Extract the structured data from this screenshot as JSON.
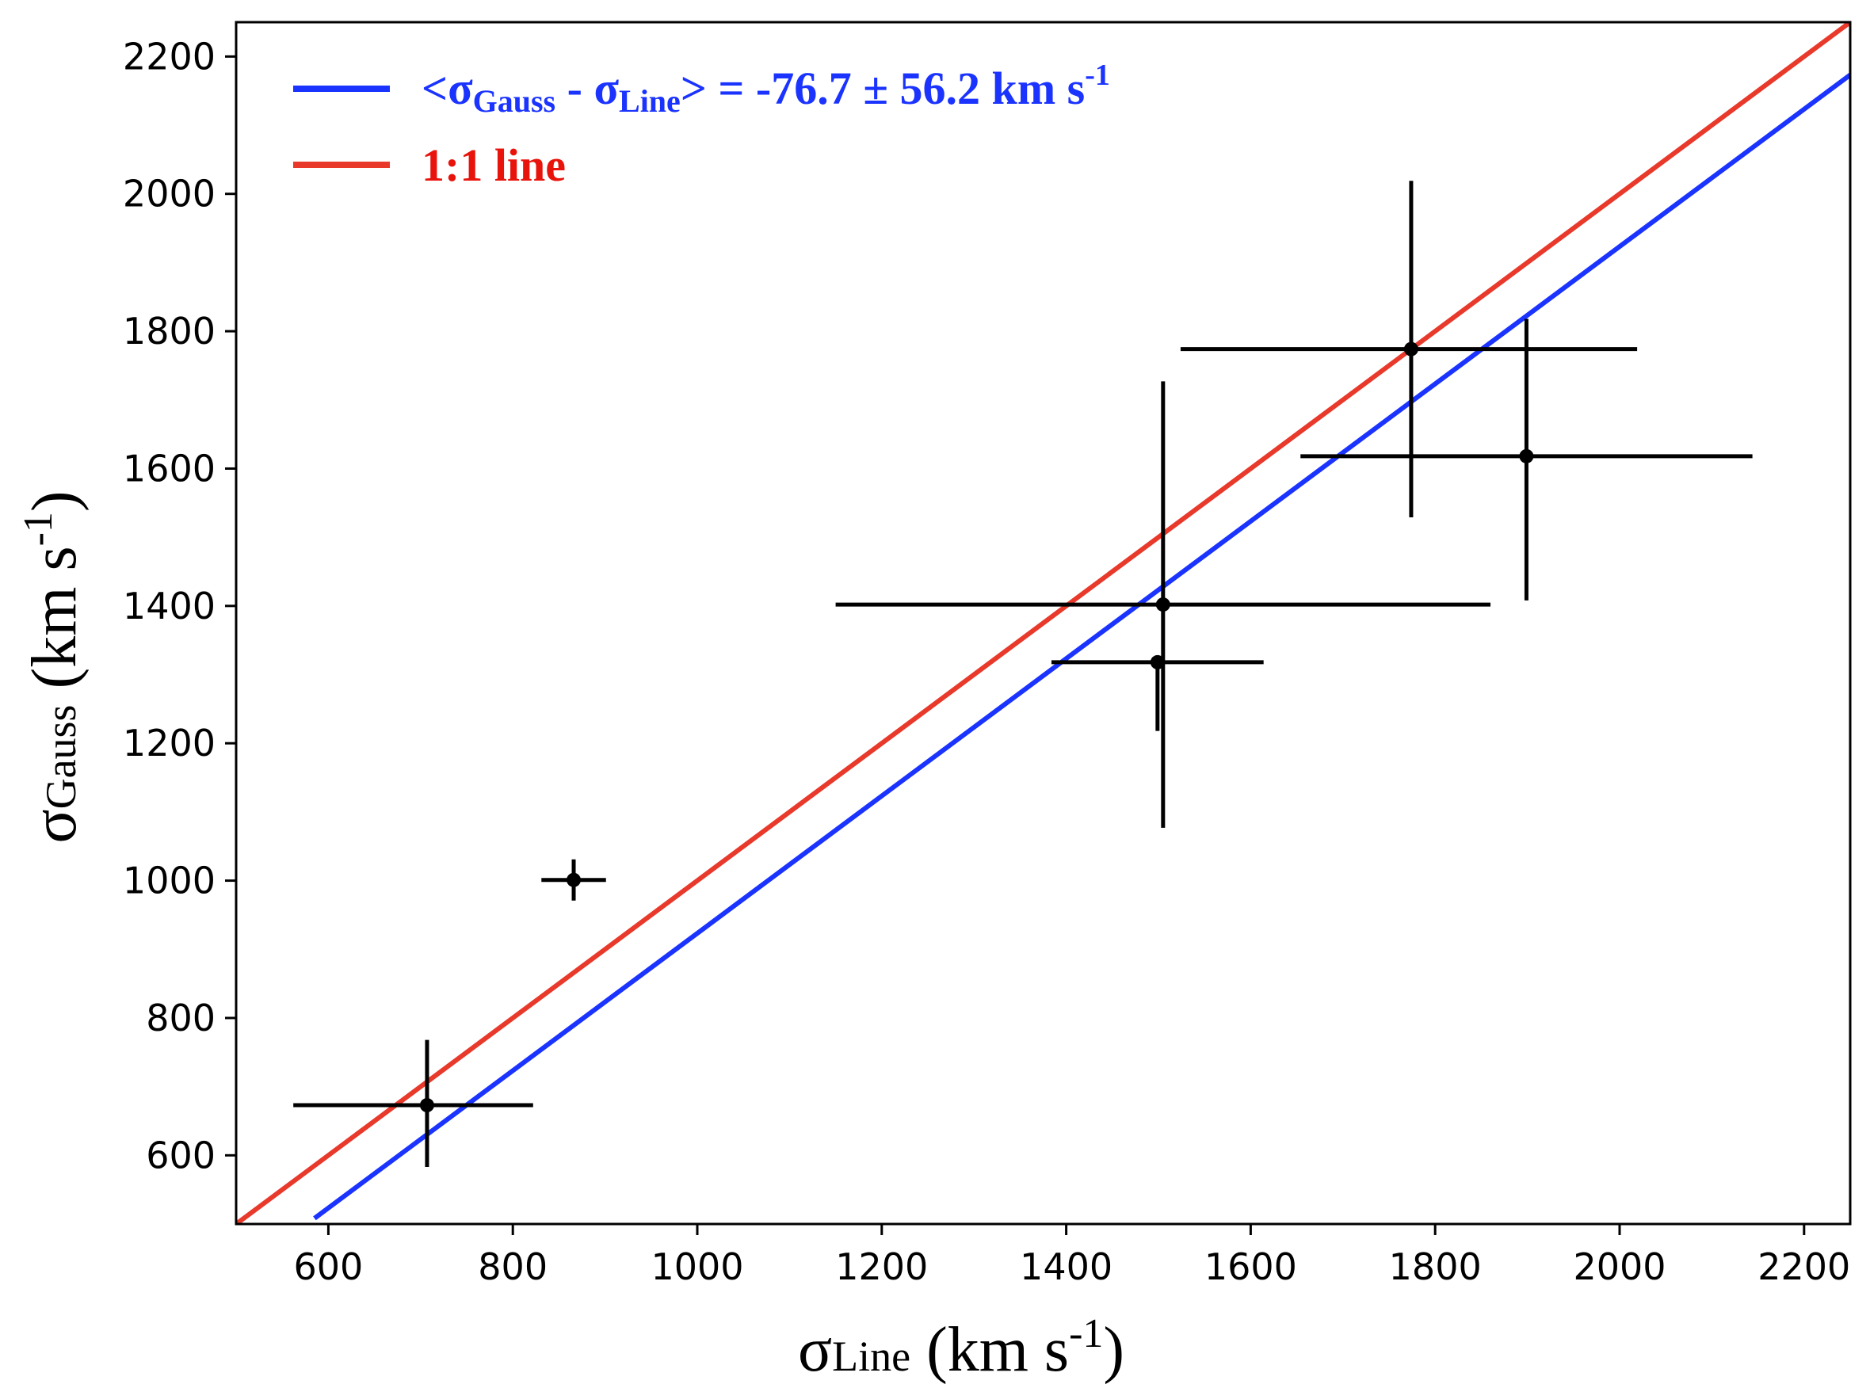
{
  "chart_data": {
    "type": "scatter",
    "title": "",
    "xlabel": {
      "symbol": "σ",
      "subscript": "Line",
      "unit": " (km s",
      "sup": "-1",
      "close": ")"
    },
    "ylabel": {
      "symbol": "σ",
      "subscript": "Gauss",
      "unit": " (km s",
      "sup": "-1",
      "close": ")"
    },
    "xlim": [
      500,
      2250
    ],
    "ylim": [
      500,
      2250
    ],
    "xticks": [
      600,
      800,
      1000,
      1200,
      1400,
      1600,
      1800,
      2000,
      2200
    ],
    "yticks": [
      600,
      800,
      1000,
      1200,
      1400,
      1600,
      1800,
      2000,
      2200
    ],
    "points": [
      {
        "x": 707,
        "y": 673,
        "xerr": [
          145,
          115
        ],
        "yerr": [
          90,
          95
        ]
      },
      {
        "x": 866,
        "y": 1001,
        "xerr": [
          35,
          35
        ],
        "yerr": [
          30,
          30
        ]
      },
      {
        "x": 1499,
        "y": 1318,
        "xerr": [
          115,
          115
        ],
        "yerr": [
          100,
          0
        ]
      },
      {
        "x": 1505,
        "y": 1402,
        "xerr": [
          355,
          355
        ],
        "yerr": [
          325,
          325
        ]
      },
      {
        "x": 1774,
        "y": 1774,
        "xerr": [
          250,
          245
        ],
        "yerr": [
          245,
          245
        ]
      },
      {
        "x": 1899,
        "y": 1618,
        "xerr": [
          245,
          245
        ],
        "yerr": [
          210,
          200
        ]
      }
    ],
    "lines": [
      {
        "name": "fit",
        "color": "#1a33ff",
        "x": [
          585,
          2250
        ],
        "y": [
          508.3,
          2173.3
        ]
      },
      {
        "name": "1:1",
        "color": "#e8392b",
        "x": [
          500,
          2250
        ],
        "y": [
          500,
          2250
        ]
      }
    ],
    "legend": {
      "position": "top-left",
      "fit": {
        "lt": "<",
        "s1": "σ",
        "sub1": "Gauss",
        "minus": " - ",
        "s2": "σ",
        "sub2": "Line",
        "rest": "> = -76.7 ± 56.2 km s",
        "sup": "-1"
      },
      "one_to_one": {
        "text": "1:1 line"
      }
    }
  }
}
